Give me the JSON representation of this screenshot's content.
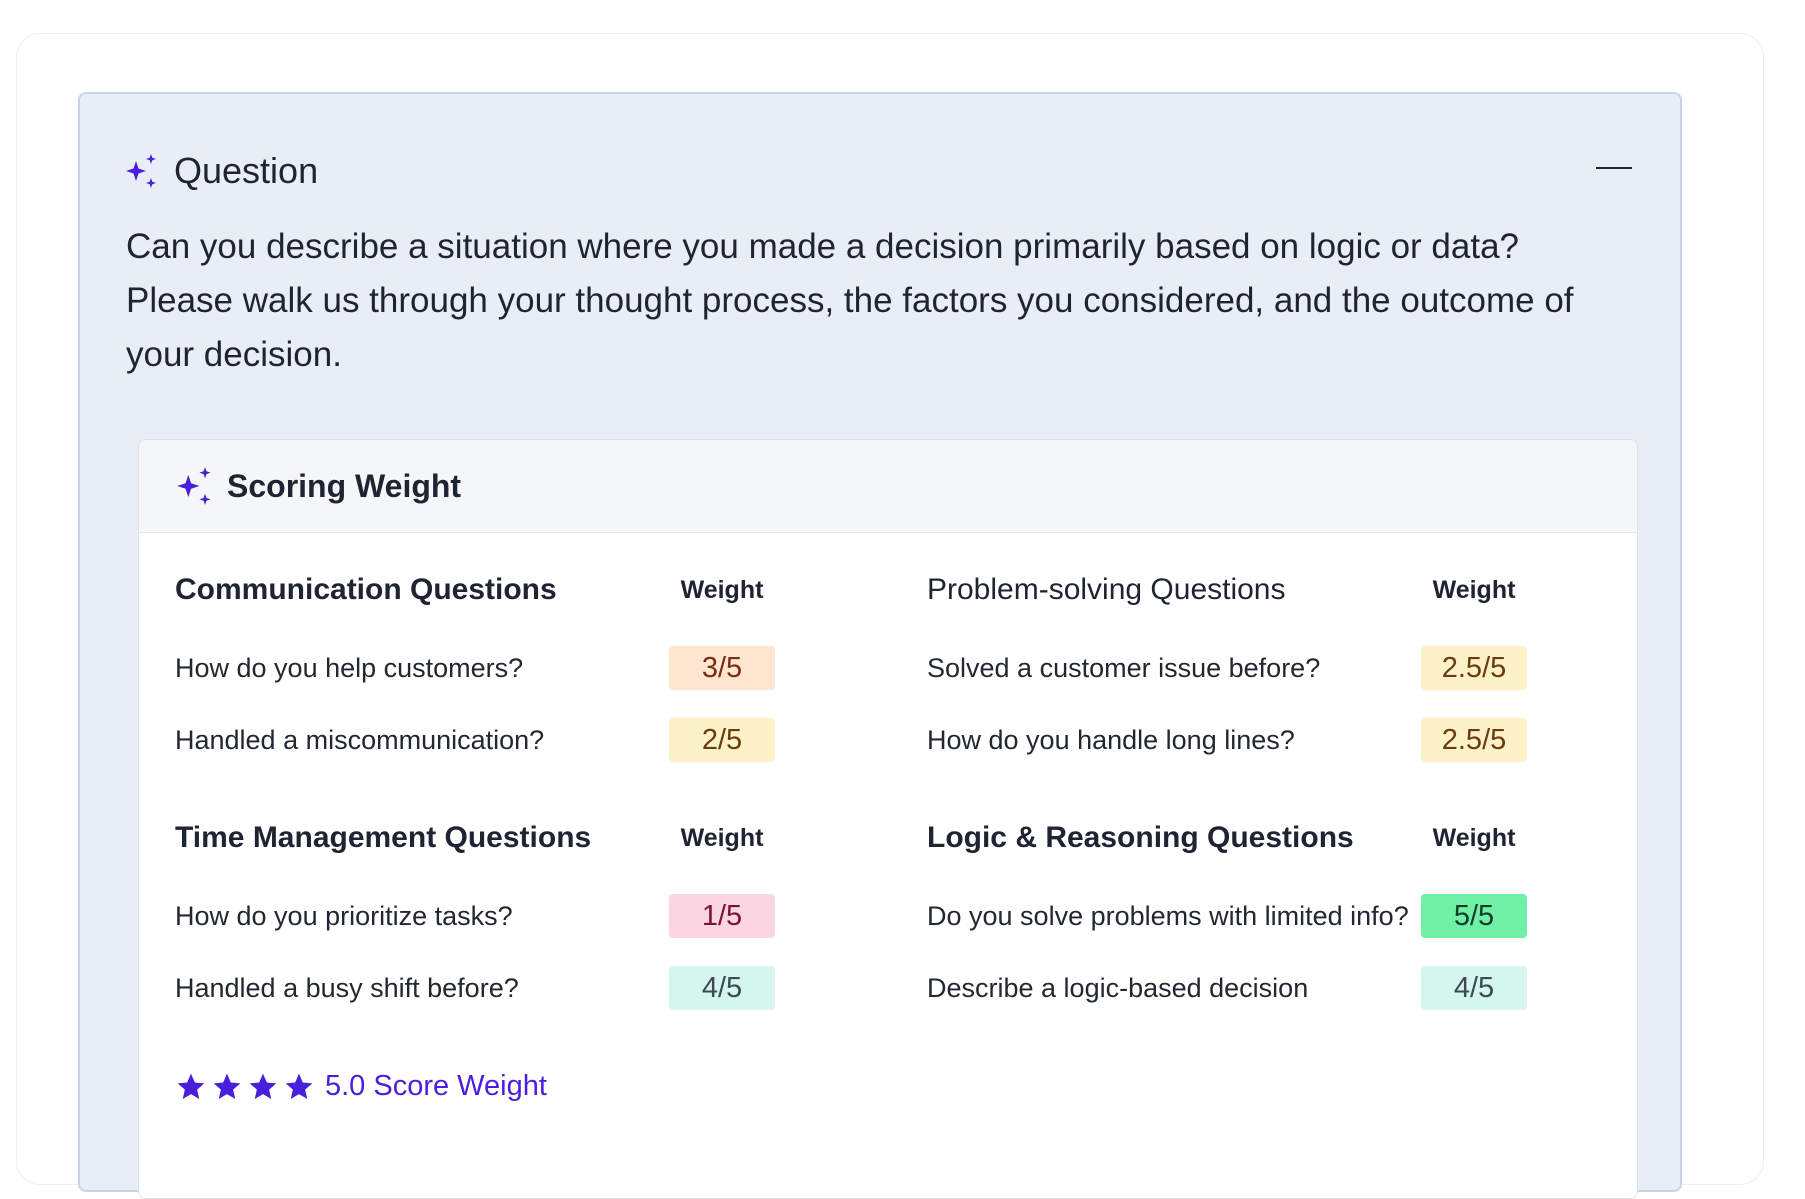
{
  "colors": {
    "accent": "#4a1fdc",
    "panel_bg": "#e9edf5",
    "badge_orange_bg": "#fde6cf",
    "badge_orange_fg": "#7a2d12",
    "badge_yellow_bg": "#fdf1c8",
    "badge_yellow_fg": "#6b3a10",
    "badge_pink_bg": "#fbd5e1",
    "badge_pink_fg": "#7a1530",
    "badge_mint_bg": "#d4f6ec",
    "badge_mint_fg": "#3d4a55",
    "badge_green_bg": "#6ff0a6",
    "badge_green_fg": "#0f3d28"
  },
  "question": {
    "icon": "sparkle-icon",
    "title": "Question",
    "collapse_icon": "minus-icon",
    "text": "Can you describe a situation where you made a decision primarily based on logic or data? Please walk us through your thought process, the factors you considered, and the outcome of your decision."
  },
  "scoring": {
    "icon": "sparkle-icon",
    "title": "Scoring Weight",
    "sections": [
      {
        "title": "Communication Questions",
        "weight_label": "Weight",
        "rows": [
          {
            "label": "How do you help customers?",
            "weight": "3/5",
            "tone": "orange"
          },
          {
            "label": "Handled a miscommunication?",
            "weight": "2/5",
            "tone": "yellow"
          }
        ]
      },
      {
        "title": "Problem-solving Questions",
        "weight_label": "Weight",
        "rows": [
          {
            "label": "Solved a customer issue before?",
            "weight": "2.5/5",
            "tone": "yellow"
          },
          {
            "label": "How do you handle long lines?",
            "weight": "2.5/5",
            "tone": "yellow"
          }
        ]
      },
      {
        "title": "Time Management Questions",
        "weight_label": "Weight",
        "rows": [
          {
            "label": "How do you prioritize tasks?",
            "weight": "1/5",
            "tone": "pink"
          },
          {
            "label": "Handled a busy shift before?",
            "weight": "4/5",
            "tone": "mint"
          }
        ]
      },
      {
        "title": "Logic & Reasoning Questions",
        "weight_label": "Weight",
        "rows": [
          {
            "label": "Do you solve problems with limited info?",
            "weight": "5/5",
            "tone": "green"
          },
          {
            "label": "Describe a logic-based decision",
            "weight": "4/5",
            "tone": "mint"
          }
        ]
      }
    ],
    "stars": 4,
    "score_text": "5.0 Score Weight"
  }
}
